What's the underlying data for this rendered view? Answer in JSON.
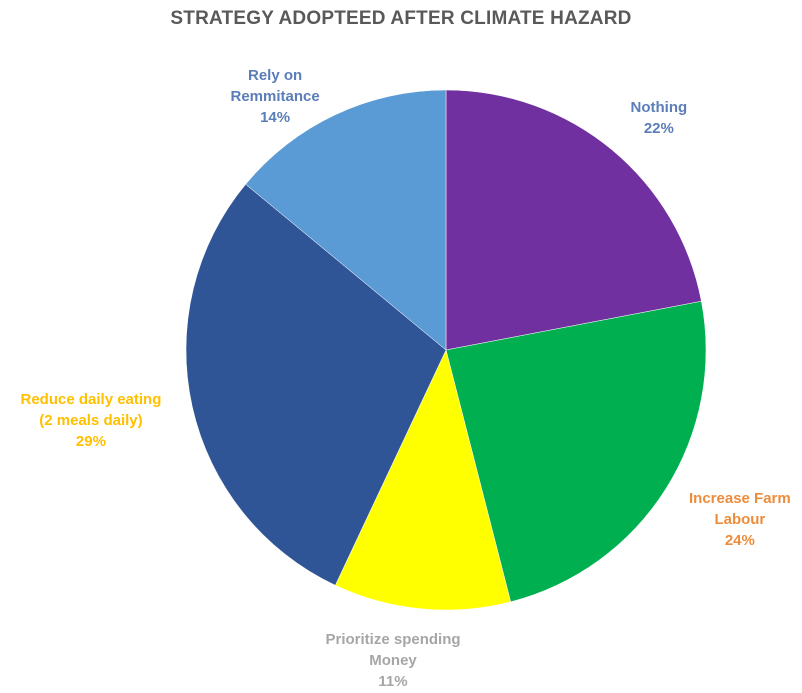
{
  "chart_data": {
    "type": "pie",
    "title": "STRATEGY ADOPTEED AFTER CLIMATE HAZARD",
    "slices": [
      {
        "name_lines": [
          "Nothing"
        ],
        "value": 22,
        "label": "22%",
        "color": "#7030a0",
        "label_color": "#5b7db8"
      },
      {
        "name_lines": [
          "Increase Farm",
          "Labour"
        ],
        "value": 24,
        "label": "24%",
        "color": "#00b050",
        "label_color": "#ed8d3c"
      },
      {
        "name_lines": [
          "Prioritize spending",
          "Money"
        ],
        "value": 11,
        "label": "11%",
        "color": "#ffff00",
        "label_color": "#a6a6a6"
      },
      {
        "name_lines": [
          "Reduce daily eating",
          "(2 meals daily)"
        ],
        "value": 29,
        "label": "29%",
        "color": "#2f5597",
        "label_color": "#ffc000"
      },
      {
        "name_lines": [
          "Rely on",
          "Remmitance"
        ],
        "value": 14,
        "label": "14%",
        "color": "#5b9bd5",
        "label_color": "#5b7db8"
      }
    ],
    "legend": "none"
  }
}
